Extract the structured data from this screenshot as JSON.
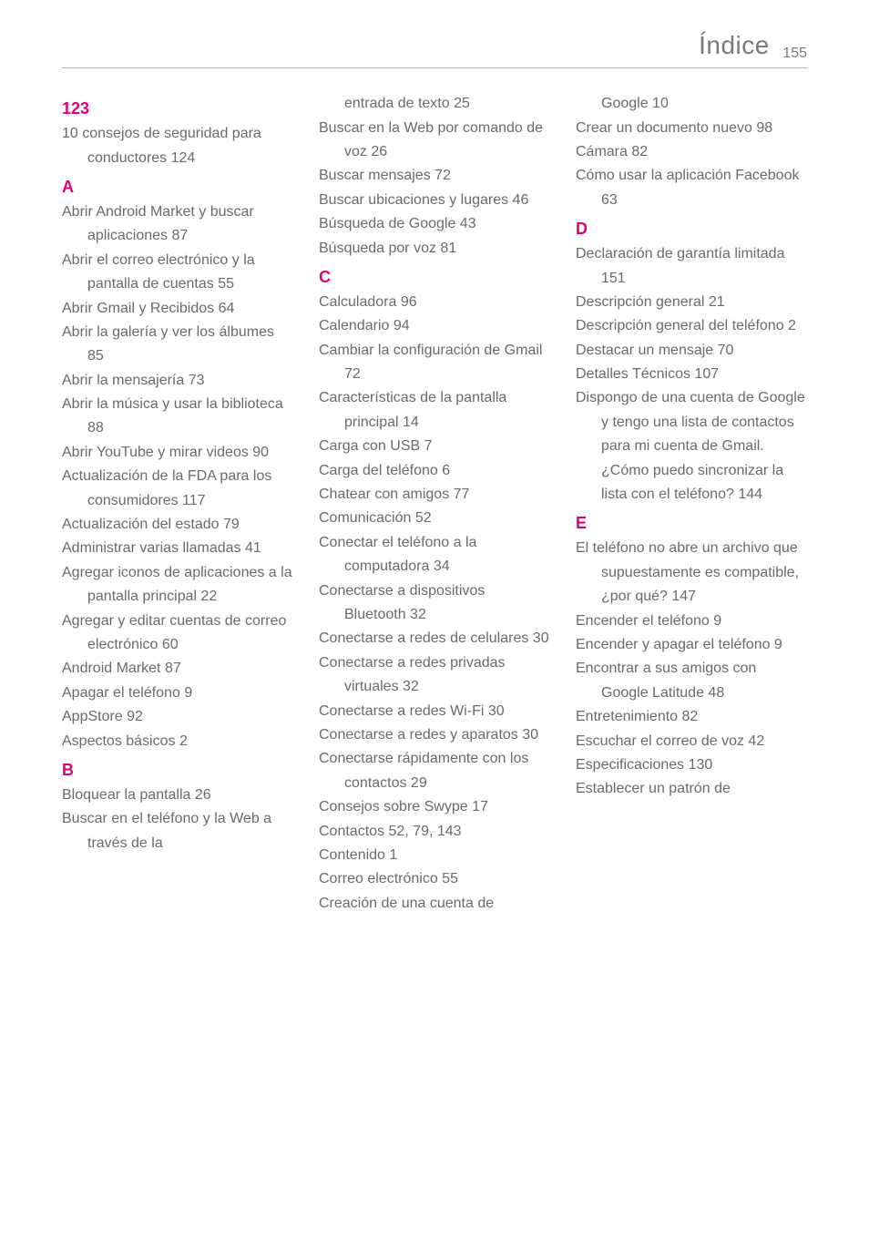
{
  "header": {
    "title": "Índice",
    "page_number": "155"
  },
  "colors": {
    "accent": "#e20074",
    "text": "#6a6a6a",
    "rule": "#b0b0b0",
    "background": "#ffffff"
  },
  "typography": {
    "body_fontsize_pt": 12,
    "header_fontsize_pt": 20,
    "section_letter_fontsize_pt": 14,
    "line_height": 1.65,
    "font_family": "Helvetica Neue"
  },
  "columns": [
    {
      "items": [
        {
          "type": "letter",
          "text": "123"
        },
        {
          "type": "entry",
          "text": "10 consejos de seguridad para conductores 124"
        },
        {
          "type": "letter",
          "text": "A"
        },
        {
          "type": "entry",
          "text": "Abrir Android Market y buscar aplicaciones 87"
        },
        {
          "type": "entry",
          "text": "Abrir el correo electrónico y la pantalla de cuentas 55"
        },
        {
          "type": "entry",
          "text": "Abrir Gmail y Recibidos 64"
        },
        {
          "type": "entry",
          "text": "Abrir la galería y ver los álbumes 85"
        },
        {
          "type": "entry",
          "text": "Abrir la mensajería 73"
        },
        {
          "type": "entry",
          "text": "Abrir la música y usar la biblioteca 88"
        },
        {
          "type": "entry",
          "text": "Abrir YouTube y mirar videos 90"
        },
        {
          "type": "entry",
          "text": "Actualización de la FDA para los consumidores 117"
        },
        {
          "type": "entry",
          "text": "Actualización del estado 79"
        },
        {
          "type": "entry",
          "text": "Administrar varias llamadas 41"
        },
        {
          "type": "entry",
          "text": "Agregar iconos de aplicaciones a la pantalla principal 22"
        },
        {
          "type": "entry",
          "text": "Agregar y editar cuentas de correo electrónico 60"
        },
        {
          "type": "entry",
          "text": "Android Market 87"
        },
        {
          "type": "entry",
          "text": "Apagar el teléfono 9"
        },
        {
          "type": "entry",
          "text": "AppStore 92"
        },
        {
          "type": "entry",
          "text": "Aspectos básicos 2"
        },
        {
          "type": "letter",
          "text": "B"
        },
        {
          "type": "entry",
          "text": "Bloquear la pantalla 26"
        },
        {
          "type": "entry",
          "text": "Buscar en el teléfono y la Web a través de la"
        }
      ]
    },
    {
      "items": [
        {
          "type": "entry",
          "text": "entrada de texto 25",
          "continuation": true
        },
        {
          "type": "entry",
          "text": "Buscar en la Web por comando de voz 26"
        },
        {
          "type": "entry",
          "text": "Buscar mensajes 72"
        },
        {
          "type": "entry",
          "text": "Buscar ubicaciones y lugares 46"
        },
        {
          "type": "entry",
          "text": "Búsqueda de Google 43"
        },
        {
          "type": "entry",
          "text": "Búsqueda por voz 81"
        },
        {
          "type": "letter",
          "text": "C"
        },
        {
          "type": "entry",
          "text": "Calculadora 96"
        },
        {
          "type": "entry",
          "text": "Calendario 94"
        },
        {
          "type": "entry",
          "text": "Cambiar la configuración de Gmail 72"
        },
        {
          "type": "entry",
          "text": "Características de la pantalla principal 14"
        },
        {
          "type": "entry",
          "text": "Carga con USB 7"
        },
        {
          "type": "entry",
          "text": "Carga del teléfono 6"
        },
        {
          "type": "entry",
          "text": "Chatear con amigos 77"
        },
        {
          "type": "entry",
          "text": "Comunicación 52"
        },
        {
          "type": "entry",
          "text": "Conectar el teléfono a la computadora 34"
        },
        {
          "type": "entry",
          "text": "Conectarse a dispositivos Bluetooth 32"
        },
        {
          "type": "entry",
          "text": "Conectarse a redes de celulares 30"
        },
        {
          "type": "entry",
          "text": "Conectarse a redes privadas virtuales 32"
        },
        {
          "type": "entry",
          "text": "Conectarse a redes Wi-Fi 30"
        },
        {
          "type": "entry",
          "text": "Conectarse a redes y aparatos 30"
        },
        {
          "type": "entry",
          "text": "Conectarse rápidamente con los contactos 29"
        },
        {
          "type": "entry",
          "text": "Consejos sobre Swype 17"
        },
        {
          "type": "entry",
          "text": "Contactos 52, 79, 143"
        },
        {
          "type": "entry",
          "text": "Contenido 1"
        },
        {
          "type": "entry",
          "text": "Correo electrónico 55"
        },
        {
          "type": "entry",
          "text": "Creación de una cuenta de"
        }
      ]
    },
    {
      "items": [
        {
          "type": "entry",
          "text": "Google 10",
          "continuation": true
        },
        {
          "type": "entry",
          "text": "Crear un documento nuevo 98"
        },
        {
          "type": "entry",
          "text": "Cámara 82"
        },
        {
          "type": "entry",
          "text": "Cómo usar la aplicación Facebook 63"
        },
        {
          "type": "letter",
          "text": "D"
        },
        {
          "type": "entry",
          "text": "Declaración de garantía limitada 151"
        },
        {
          "type": "entry",
          "text": "Descripción general 21"
        },
        {
          "type": "entry",
          "text": "Descripción general del teléfono 2"
        },
        {
          "type": "entry",
          "text": "Destacar un mensaje 70"
        },
        {
          "type": "entry",
          "text": "Detalles Técnicos 107"
        },
        {
          "type": "entry",
          "text": "Dispongo de una cuenta de Google y tengo una lista de contactos para mi cuenta de Gmail. ¿Cómo puedo sincronizar la lista con el teléfono? 144"
        },
        {
          "type": "letter",
          "text": "E"
        },
        {
          "type": "entry",
          "text": "El teléfono no abre un archivo que supuestamente es compatible, ¿por qué? 147"
        },
        {
          "type": "entry",
          "text": "Encender el teléfono 9"
        },
        {
          "type": "entry",
          "text": "Encender y apagar el teléfono 9"
        },
        {
          "type": "entry",
          "text": "Encontrar a sus amigos con Google Latitude 48"
        },
        {
          "type": "entry",
          "text": "Entretenimiento 82"
        },
        {
          "type": "entry",
          "text": "Escuchar el correo de voz 42"
        },
        {
          "type": "entry",
          "text": "Especificaciones 130"
        },
        {
          "type": "entry",
          "text": "Establecer un patrón de"
        }
      ]
    }
  ]
}
